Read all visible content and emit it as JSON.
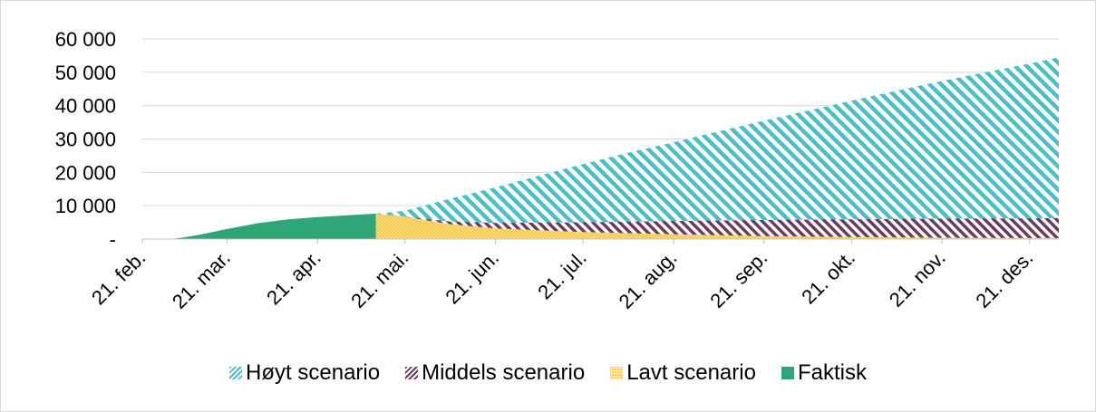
{
  "chart_data": {
    "type": "area",
    "title": "",
    "xlabel": "",
    "ylabel": "",
    "ylim": [
      0,
      60000
    ],
    "y_ticks": [
      {
        "value": 0,
        "label": "-"
      },
      {
        "value": 10000,
        "label": "10 000"
      },
      {
        "value": 20000,
        "label": "20 000"
      },
      {
        "value": 30000,
        "label": "30 000"
      },
      {
        "value": 40000,
        "label": "40 000"
      },
      {
        "value": 50000,
        "label": "50 000"
      },
      {
        "value": 60000,
        "label": "60 000"
      }
    ],
    "x_ticks": [
      "21. feb.",
      "21. mar.",
      "21. apr.",
      "21. mai.",
      "21. jun.",
      "21. jul.",
      "21. aug.",
      "21. sep.",
      "21. okt.",
      "21. nov.",
      "21. des."
    ],
    "x_range": [
      "2020-02-21",
      "2020-12-31"
    ],
    "grid": "horizontal",
    "legend_position": "bottom",
    "series": [
      {
        "name": "Høyt scenario",
        "color": "#4bbec8",
        "pattern": "diagonal-stripes",
        "points": [
          [
            "2020-05-11",
            7600
          ],
          [
            "2020-05-21",
            8500
          ],
          [
            "2020-06-05",
            12000
          ],
          [
            "2020-06-21",
            15500
          ],
          [
            "2020-07-06",
            19000
          ],
          [
            "2020-07-21",
            22500
          ],
          [
            "2020-08-05",
            25800
          ],
          [
            "2020-08-21",
            29000
          ],
          [
            "2020-09-05",
            32200
          ],
          [
            "2020-09-21",
            35500
          ],
          [
            "2020-10-06",
            38500
          ],
          [
            "2020-10-21",
            41500
          ],
          [
            "2020-11-05",
            44400
          ],
          [
            "2020-11-21",
            47400
          ],
          [
            "2020-12-06",
            50000
          ],
          [
            "2020-12-21",
            52600
          ],
          [
            "2020-12-31",
            54500
          ]
        ]
      },
      {
        "name": "Middels scenario",
        "color": "#6b3a5e",
        "pattern": "diagonal-stripes",
        "points": [
          [
            "2020-05-11",
            7600
          ],
          [
            "2020-05-21",
            6700
          ],
          [
            "2020-06-05",
            5300
          ],
          [
            "2020-06-21",
            4800
          ],
          [
            "2020-07-21",
            5000
          ],
          [
            "2020-08-21",
            5400
          ],
          [
            "2020-09-21",
            5700
          ],
          [
            "2020-10-21",
            5900
          ],
          [
            "2020-11-21",
            6100
          ],
          [
            "2020-12-21",
            6200
          ],
          [
            "2020-12-31",
            6300
          ]
        ]
      },
      {
        "name": "Lavt scenario",
        "color": "#f7c948",
        "pattern": "dots",
        "points": [
          [
            "2020-05-11",
            7600
          ],
          [
            "2020-05-21",
            6700
          ],
          [
            "2020-06-05",
            4500
          ],
          [
            "2020-06-21",
            3200
          ],
          [
            "2020-07-21",
            2100
          ],
          [
            "2020-08-21",
            1400
          ],
          [
            "2020-09-21",
            900
          ],
          [
            "2020-10-21",
            600
          ],
          [
            "2020-11-21",
            400
          ],
          [
            "2020-12-31",
            300
          ]
        ]
      },
      {
        "name": "Faktisk",
        "color": "#2fa678",
        "pattern": "solid",
        "points": [
          [
            "2020-02-21",
            0
          ],
          [
            "2020-02-29",
            0
          ],
          [
            "2020-03-04",
            200
          ],
          [
            "2020-03-11",
            1200
          ],
          [
            "2020-03-21",
            3000
          ],
          [
            "2020-04-01",
            4800
          ],
          [
            "2020-04-11",
            5900
          ],
          [
            "2020-04-21",
            6600
          ],
          [
            "2020-05-01",
            7100
          ],
          [
            "2020-05-11",
            7600
          ]
        ]
      }
    ]
  }
}
